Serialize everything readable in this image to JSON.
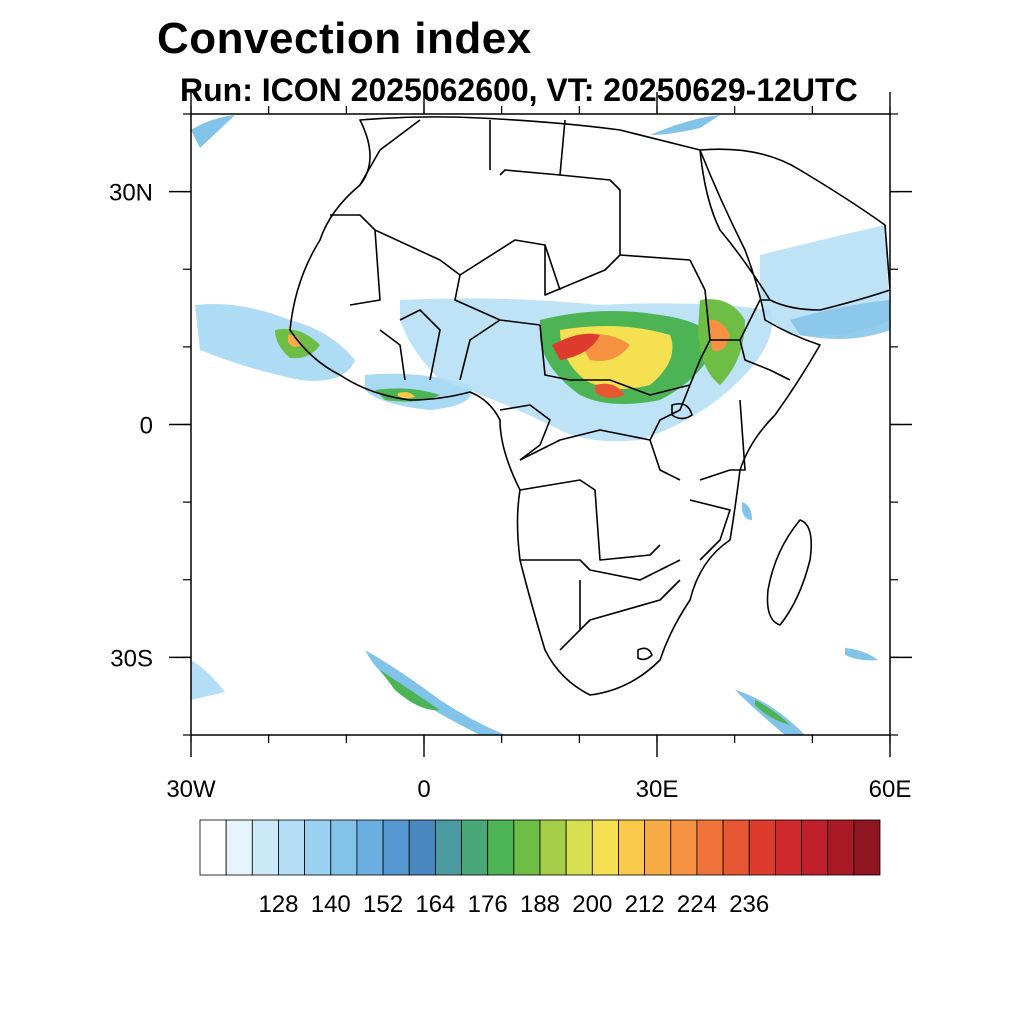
{
  "title": "Convection index",
  "subtitle": "Run: ICON 2025062600,  VT: 20250629-12UTC",
  "map": {
    "projection": "cylindrical equidistant",
    "lon_range": [
      -30,
      60
    ],
    "lat_range": [
      -40,
      40
    ],
    "lat_ticks": [
      {
        "value": 30,
        "label": "30N"
      },
      {
        "value": 0,
        "label": "0"
      },
      {
        "value": -30,
        "label": "30S"
      }
    ],
    "lon_ticks": [
      {
        "value": -30,
        "label": "30W"
      },
      {
        "value": 0,
        "label": "0"
      },
      {
        "value": 30,
        "label": "30E"
      },
      {
        "value": 60,
        "label": "60E"
      }
    ]
  },
  "colorbar": {
    "colors": [
      "#ffffff",
      "#e6f4fc",
      "#cce9f8",
      "#b3def5",
      "#9ad3f2",
      "#82c3ea",
      "#6aafe0",
      "#5597d1",
      "#4a86bf",
      "#4a9aa0",
      "#48a878",
      "#4db455",
      "#6ebd45",
      "#a5cd48",
      "#d7e050",
      "#f4e050",
      "#f9c94a",
      "#f8ac45",
      "#f59140",
      "#ef733a",
      "#e75733",
      "#dd3b2e",
      "#d02a2d",
      "#bf1f2b",
      "#a91a26",
      "#8f1520"
    ],
    "labels": [
      "128",
      "140",
      "152",
      "164",
      "176",
      "188",
      "200",
      "212",
      "224",
      "236"
    ]
  }
}
